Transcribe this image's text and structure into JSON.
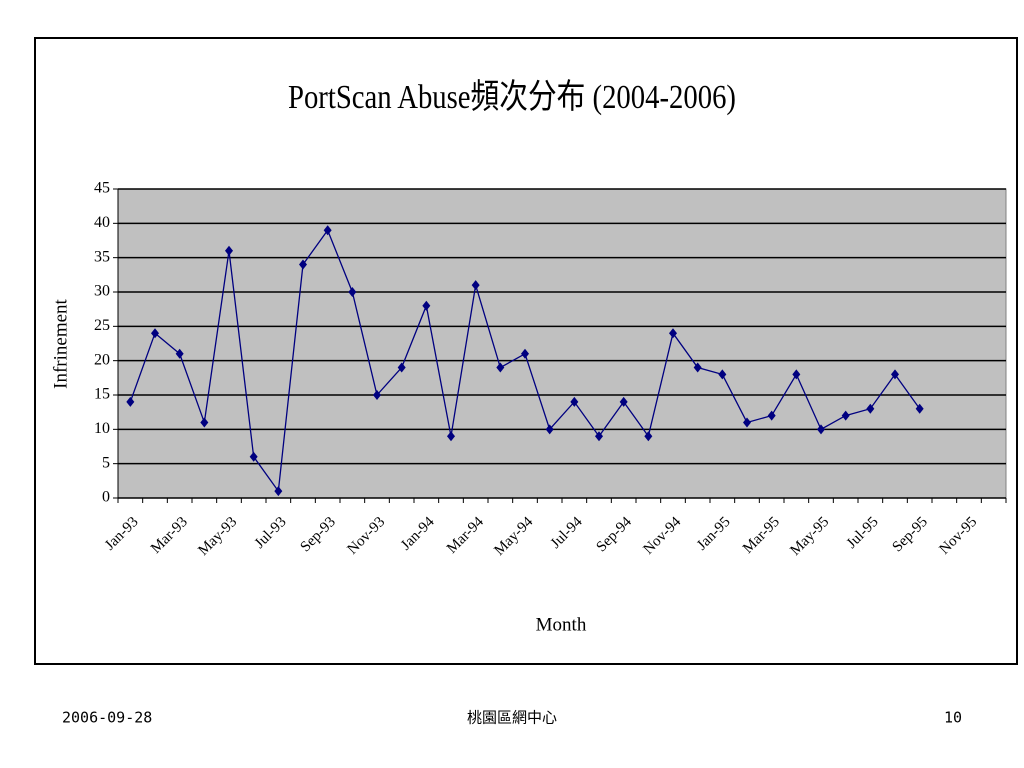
{
  "chart_data": {
    "type": "line",
    "title": "PortScan Abuse頻次分布 (2004-2006)",
    "x_label": "Month",
    "y_label": "Infrinement",
    "categories": [
      "Jan-93",
      null,
      "Mar-93",
      null,
      "May-93",
      null,
      "Jul-93",
      null,
      "Sep-93",
      null,
      "Nov-93",
      null,
      "Jan-94",
      null,
      "Mar-94",
      null,
      "May-94",
      null,
      "Jul-94",
      null,
      "Sep-94",
      null,
      "Nov-94",
      null,
      "Jan-95",
      null,
      "Mar-95",
      null,
      "May-95",
      null,
      "Jul-95",
      null,
      "Sep-95",
      null,
      "Nov-95",
      null
    ],
    "series": [
      {
        "color": "#000080",
        "values": [
          14,
          24,
          21,
          11,
          36,
          6,
          1,
          34,
          39,
          30,
          15,
          19,
          28,
          9,
          31,
          19,
          21,
          10,
          14,
          9,
          14,
          9,
          24,
          19,
          18,
          11,
          12,
          18,
          10,
          12,
          13,
          18,
          13,
          null,
          null,
          null
        ]
      }
    ],
    "ylim": [
      0,
      45
    ],
    "yticks": [
      0,
      5,
      10,
      15,
      20,
      25,
      30,
      35,
      40,
      45
    ],
    "grid": true,
    "plot_background": "#c0c0c0"
  },
  "footer": {
    "date": "2006-09-28",
    "organization": "桃園區網中心",
    "page_number": "10"
  }
}
